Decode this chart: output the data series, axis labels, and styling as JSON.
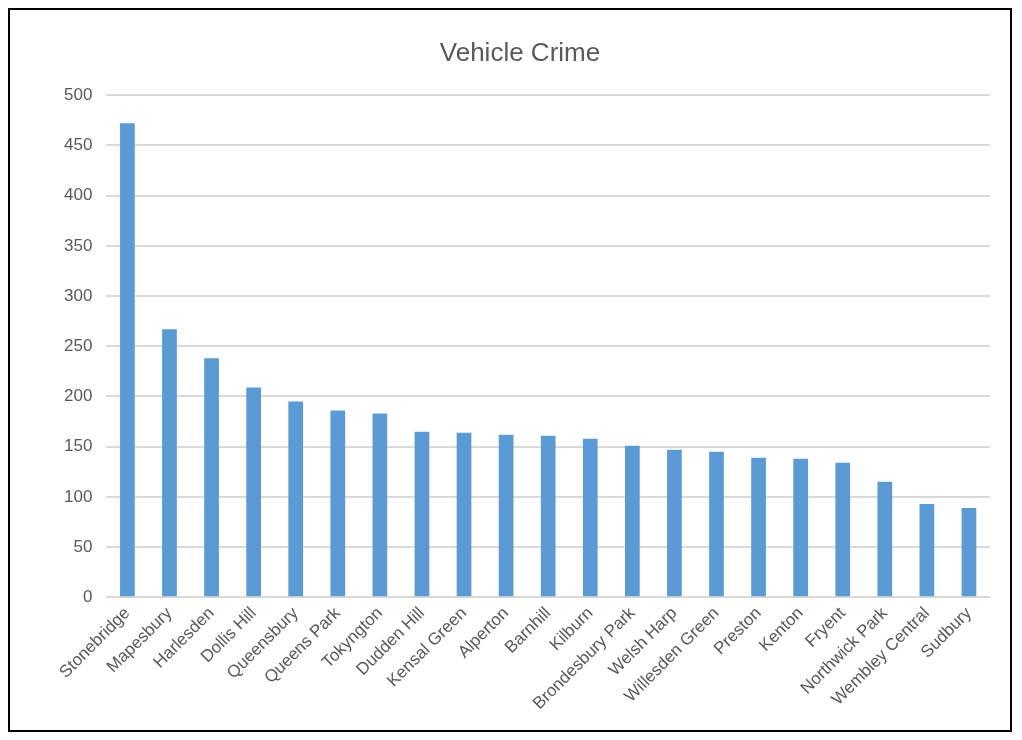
{
  "chart_data": {
    "type": "bar",
    "title": "Vehicle Crime",
    "categories": [
      "Stonebridge",
      "Mapesbury",
      "Harlesden",
      "Dollis Hill",
      "Queensbury",
      "Queens Park",
      "Tokyngton",
      "Dudden Hill",
      "Kensal Green",
      "Alperton",
      "Barnhill",
      "Kilburn",
      "Brondesbury Park",
      "Welsh Harp",
      "Willesden Green",
      "Preston",
      "Kenton",
      "Fryent",
      "Northwick Park",
      "Wembley Central",
      "Sudbury"
    ],
    "values": [
      472,
      267,
      238,
      209,
      195,
      186,
      183,
      165,
      164,
      162,
      161,
      158,
      151,
      147,
      145,
      139,
      138,
      134,
      115,
      93,
      89
    ],
    "color": "#5b9bd5",
    "ylim": [
      0,
      500
    ],
    "yticks": [
      0,
      50,
      100,
      150,
      200,
      250,
      300,
      350,
      400,
      450,
      500
    ],
    "grid": "y",
    "legend": false
  }
}
